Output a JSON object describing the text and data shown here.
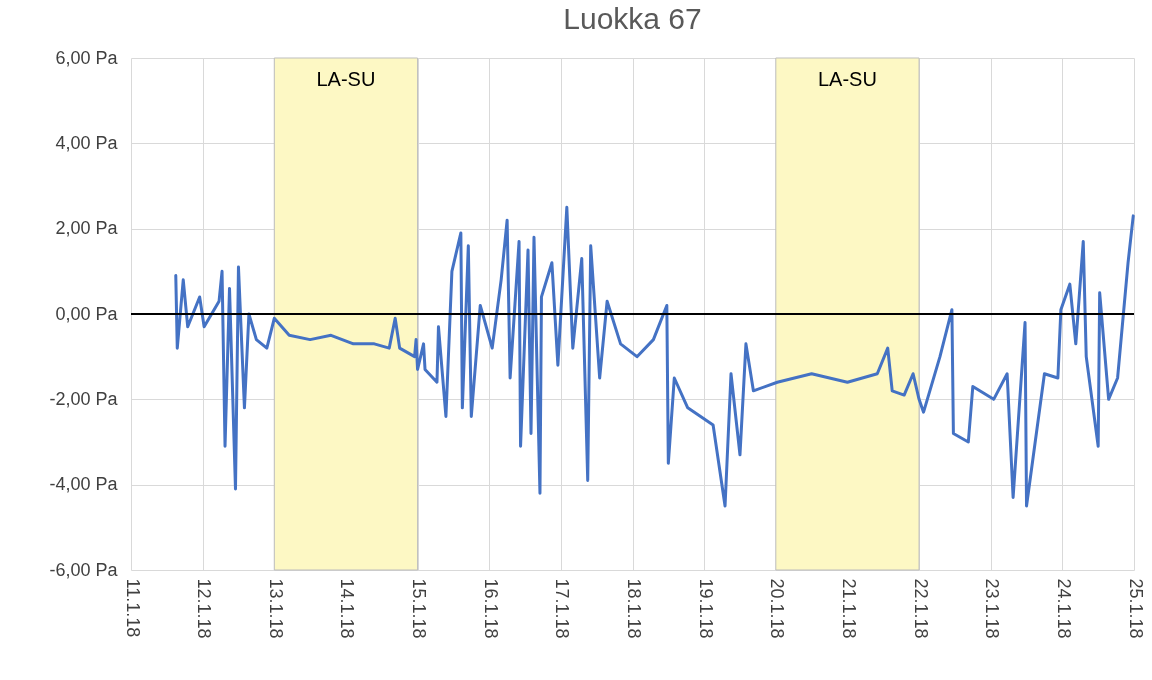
{
  "chart_data": {
    "type": "line",
    "title": "Luokka 67",
    "xlim": [
      "--01-11",
      "--01-25"
    ],
    "xticks": [
      {
        "value": "--01-11",
        "label": "11.1.18"
      },
      {
        "value": "--01-12",
        "label": "12.1.18"
      },
      {
        "value": "--01-13",
        "label": "13.1.18"
      },
      {
        "value": "--01-14",
        "label": "14.1.18"
      },
      {
        "value": "--01-15",
        "label": "15.1.18"
      },
      {
        "value": "--01-16",
        "label": "16.1.18"
      },
      {
        "value": "--01-17",
        "label": "17.1.18"
      },
      {
        "value": "--01-18",
        "label": "18.1.18"
      },
      {
        "value": "--01-19",
        "label": "19.1.18"
      },
      {
        "value": "--01-20",
        "label": "20.1.18"
      },
      {
        "value": "--01-21",
        "label": "21.1.18"
      },
      {
        "value": "--01-22",
        "label": "22.1.18"
      },
      {
        "value": "--01-23",
        "label": "23.1.18"
      },
      {
        "value": "--01-24",
        "label": "24.1.18"
      },
      {
        "value": "--01-25",
        "label": "25.1.18"
      }
    ],
    "ylim": [
      -6,
      6
    ],
    "yticks": [
      {
        "value": -6,
        "label": "-6,00 Pa"
      },
      {
        "value": -4,
        "label": "-4,00 Pa"
      },
      {
        "value": -2,
        "label": "-2,00 Pa"
      },
      {
        "value": 0,
        "label": "0,00 Pa"
      },
      {
        "value": 2,
        "label": "2,00 Pa"
      },
      {
        "value": 4,
        "label": "4,00 Pa"
      },
      {
        "value": 6,
        "label": "6,00 Pa"
      }
    ],
    "grid": true,
    "ref_lines": [
      {
        "axis": "y",
        "value": 0,
        "color": "#000000"
      }
    ],
    "bands": [
      {
        "axis": "x",
        "from": "--01-13",
        "to": "--01-15",
        "label": "LA-SU",
        "color": "#fdf8c4"
      },
      {
        "axis": "x",
        "from": "--01-20",
        "to": "--01-22",
        "label": "LA-SU",
        "color": "#fdf8c4"
      }
    ],
    "series": [
      {
        "color": "#4472c4",
        "x": [
          "--01-11T15:00",
          "--01-11T15:30",
          "--01-11T17:30",
          "--01-11T19:00",
          "--01-11T23:00",
          "--01-12T00:30",
          "--01-12T05:30",
          "--01-12T06:30",
          "--01-12T07:30",
          "--01-12T09:00",
          "--01-12T11:00",
          "--01-12T12:00",
          "--01-12T14:00",
          "--01-12T15:30",
          "--01-12T18:00",
          "--01-12T21:30",
          "--01-13T00:00",
          "--01-13T05:00",
          "--01-13T12:00",
          "--01-13T19:00",
          "--01-14T02:30",
          "--01-14T09:30",
          "--01-14T14:30",
          "--01-14T16:30",
          "--01-14T18:00",
          "--01-14T23:00",
          "--01-14T23:30",
          "--01-15T00:00",
          "--01-15T02:00",
          "--01-15T02:30",
          "--01-15T06:30",
          "--01-15T07:00",
          "--01-15T09:30",
          "--01-15T11:30",
          "--01-15T14:30",
          "--01-15T15:00",
          "--01-15T17:00",
          "--01-15T18:00",
          "--01-15T21:00",
          "--01-16T01:00",
          "--01-16T04:00",
          "--01-16T06:00",
          "--01-16T07:00",
          "--01-16T10:00",
          "--01-16T10:30",
          "--01-16T13:00",
          "--01-16T14:00",
          "--01-16T15:00",
          "--01-16T17:00",
          "--01-16T17:30",
          "--01-16T21:00",
          "--01-16T23:00",
          "--01-17T02:00",
          "--01-17T04:00",
          "--01-17T07:00",
          "--01-17T09:00",
          "--01-17T10:00",
          "--01-17T13:00",
          "--01-17T15:30",
          "--01-17T20:00",
          "--01-18T01:30",
          "--01-18T07:00",
          "--01-18T11:30",
          "--01-18T12:00",
          "--01-18T14:00",
          "--01-18T18:30",
          "--01-19T03:00",
          "--01-19T07:00",
          "--01-19T09:00",
          "--01-19T12:00",
          "--01-19T14:00",
          "--01-19T16:30",
          "--01-20T00:30",
          "--01-20T12:00",
          "--01-21T00:00",
          "--01-21T10:00",
          "--01-21T13:30",
          "--01-21T15:00",
          "--01-21T19:00",
          "--01-21T22:00",
          "--01-22T00:00",
          "--01-22T01:30",
          "--01-22T07:00",
          "--01-22T11:00",
          "--01-22T11:30",
          "--01-22T16:30",
          "--01-22T18:00",
          "--01-23T01:00",
          "--01-23T05:30",
          "--01-23T07:30",
          "--01-23T11:30",
          "--01-23T12:00",
          "--01-23T18:00",
          "--01-23T22:30",
          "--01-23T23:30",
          "--01-24T02:30",
          "--01-24T04:30",
          "--01-24T07:00",
          "--01-24T08:00",
          "--01-24T12:00",
          "--01-24T12:30",
          "--01-24T15:30",
          "--01-24T18:30",
          "--01-24T22:00",
          "--01-24T23:45"
        ],
        "values": [
          0.9,
          -0.8,
          0.8,
          -0.3,
          0.4,
          -0.3,
          0.3,
          1.0,
          -3.1,
          0.6,
          -4.1,
          1.1,
          -2.2,
          0.0,
          -0.6,
          -0.8,
          -0.1,
          -0.5,
          -0.6,
          -0.5,
          -0.7,
          -0.7,
          -0.8,
          -0.1,
          -0.8,
          -1.0,
          -0.6,
          -1.3,
          -0.7,
          -1.3,
          -1.6,
          -0.3,
          -2.4,
          1.0,
          1.9,
          -2.2,
          1.6,
          -2.4,
          0.2,
          -0.8,
          0.8,
          2.2,
          -1.5,
          1.7,
          -3.1,
          1.5,
          -2.8,
          1.8,
          -4.2,
          0.4,
          1.2,
          -1.2,
          2.5,
          -0.8,
          1.3,
          -3.9,
          1.6,
          -1.5,
          0.3,
          -0.7,
          -1.0,
          -0.6,
          0.2,
          -3.5,
          -1.5,
          -2.2,
          -2.6,
          -4.5,
          -1.4,
          -3.3,
          -0.7,
          -1.8,
          -1.6,
          -1.4,
          -1.6,
          -1.4,
          -0.8,
          -1.8,
          -1.9,
          -1.4,
          -2.0,
          -2.3,
          -1.0,
          0.1,
          -2.8,
          -3.0,
          -1.7,
          -2.0,
          -1.4,
          -4.3,
          -0.2,
          -4.5,
          -1.4,
          -1.5,
          0.1,
          0.7,
          -0.7,
          1.7,
          -1.0,
          -3.1,
          0.5,
          -2.0,
          -1.5,
          1.2,
          2.3
        ]
      }
    ]
  }
}
